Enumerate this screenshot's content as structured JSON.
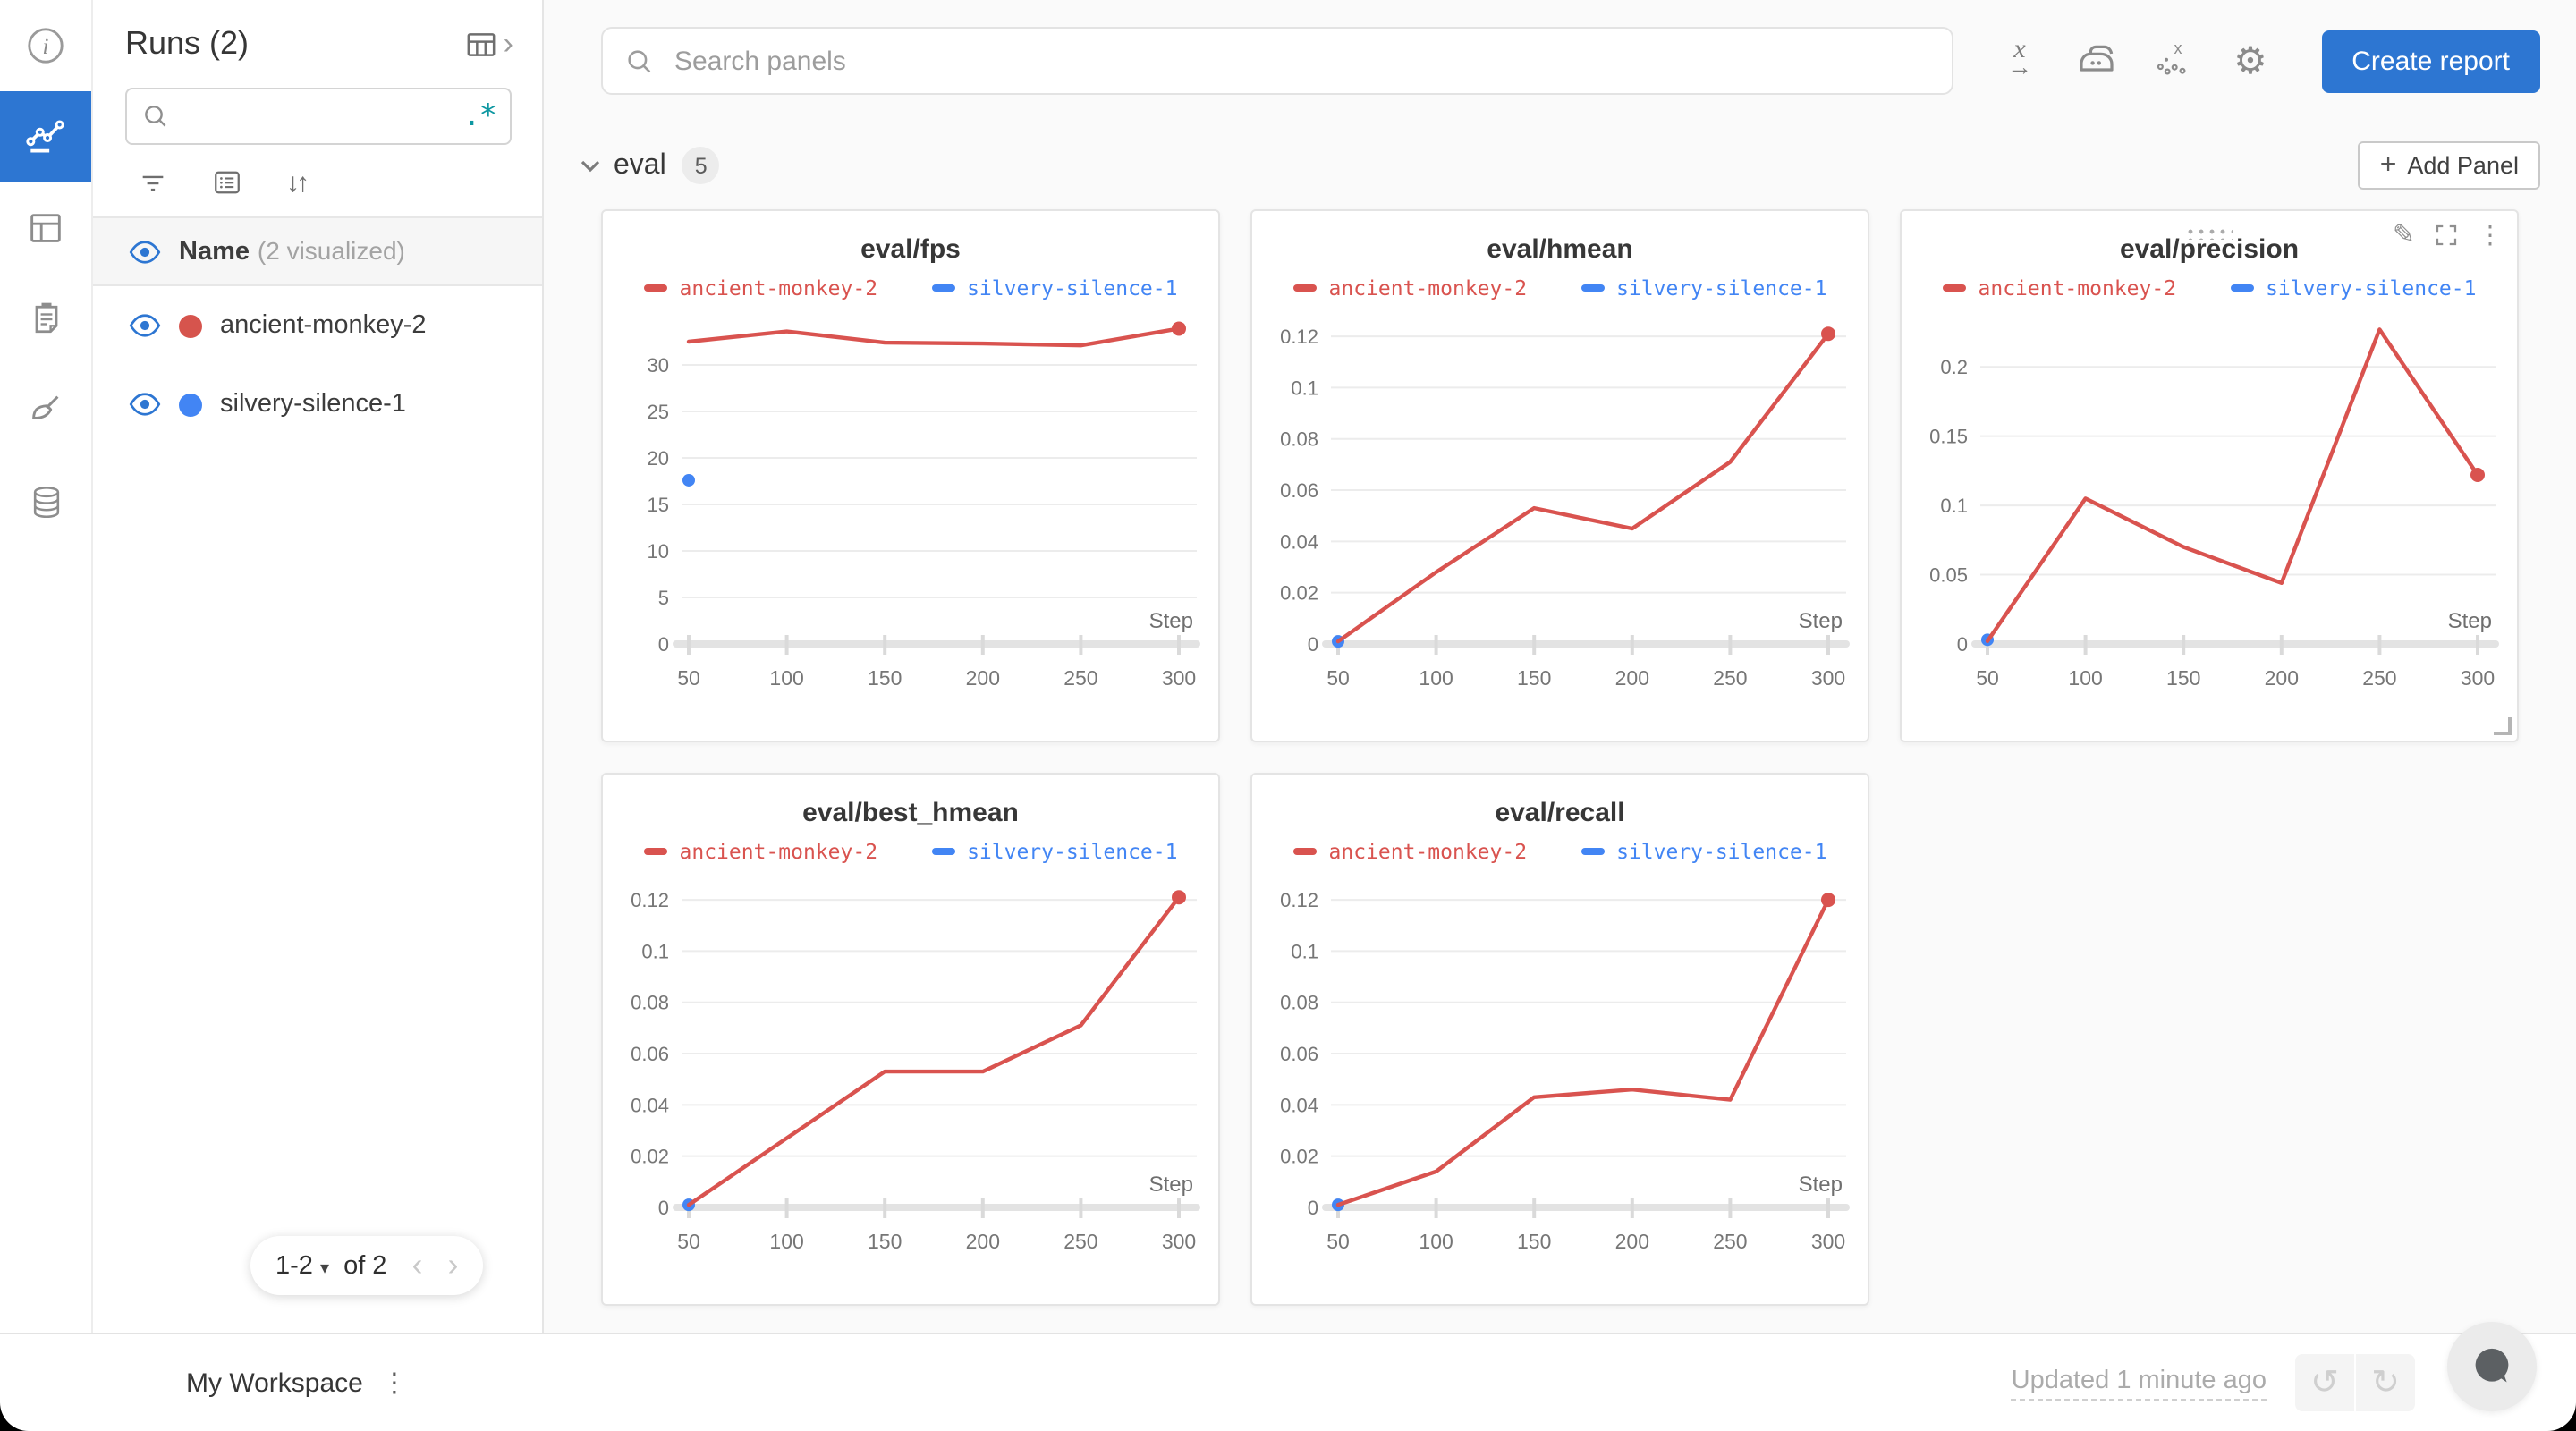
{
  "runs_sidebar": {
    "title": "Runs (2)",
    "search_placeholder": "",
    "name_header": {
      "label": "Name",
      "sub": "(2 visualized)"
    },
    "runs": [
      {
        "name": "ancient-monkey-2",
        "color": "#d6544d"
      },
      {
        "name": "silvery-silence-1",
        "color": "#4285f4"
      }
    ],
    "pagination": {
      "range": "1-2",
      "of_label": "of 2"
    }
  },
  "topbar": {
    "search_placeholder": "Search panels",
    "create_report_label": "Create report"
  },
  "section": {
    "name": "eval",
    "count": "5",
    "add_panel_label": "Add Panel",
    "plus": "+"
  },
  "footer": {
    "workspace_title": "My Workspace",
    "updated_label": "Updated 1 minute ago"
  },
  "icons": {
    "regex": ".*",
    "sort": "↓↑",
    "gear": "⚙",
    "pencil": "✎",
    "kebab": "⋮",
    "footer_kebab": "⋮",
    "undo": "↺",
    "redo": "↻",
    "prev": "‹",
    "next": "›",
    "caret_down": "▾",
    "header_chevron": "›",
    "x_axis_letter": "x",
    "x_axis_arrow": "→",
    "outlier_x": "x"
  },
  "colors": {
    "accent_blue": "#2d76d2",
    "run_red": "#d6544d",
    "run_blue": "#4285f4",
    "teal_regex": "#0d97a1"
  },
  "chart_data": [
    {
      "type": "line",
      "title": "eval/fps",
      "xlabel": "Step",
      "x": [
        50,
        100,
        150,
        200,
        250,
        300
      ],
      "xlim": [
        50,
        300
      ],
      "yticks": [
        0,
        5,
        10,
        15,
        20,
        25,
        30
      ],
      "ylim": [
        0,
        35
      ],
      "legend_position": "top",
      "grid": true,
      "series": [
        {
          "name": "ancient-monkey-2",
          "color": "#d9534f",
          "values": [
            32.5,
            33.6,
            32.4,
            32.3,
            32.1,
            33.9
          ]
        },
        {
          "name": "silvery-silence-1",
          "color": "#4285f4",
          "values": [
            17.6,
            null,
            null,
            null,
            null,
            null
          ]
        }
      ]
    },
    {
      "type": "line",
      "title": "eval/hmean",
      "xlabel": "Step",
      "x": [
        50,
        100,
        150,
        200,
        250,
        300
      ],
      "xlim": [
        50,
        300
      ],
      "yticks": [
        0,
        0.02,
        0.04,
        0.06,
        0.08,
        0.1,
        0.12
      ],
      "ylim": [
        0,
        0.127
      ],
      "legend_position": "top",
      "grid": true,
      "series": [
        {
          "name": "ancient-monkey-2",
          "color": "#d9534f",
          "values": [
            0.001,
            0.028,
            0.053,
            0.045,
            0.071,
            0.121
          ]
        },
        {
          "name": "silvery-silence-1",
          "color": "#4285f4",
          "values": [
            0.001,
            null,
            null,
            null,
            null,
            null
          ]
        }
      ]
    },
    {
      "type": "line",
      "title": "eval/precision",
      "xlabel": "Step",
      "x": [
        50,
        100,
        150,
        200,
        250,
        300
      ],
      "xlim": [
        50,
        300
      ],
      "yticks": [
        0,
        0.05,
        0.1,
        0.15,
        0.2
      ],
      "ylim": [
        0,
        0.235
      ],
      "legend_position": "top",
      "grid": true,
      "active_controls": true,
      "series": [
        {
          "name": "ancient-monkey-2",
          "color": "#d9534f",
          "values": [
            0.002,
            0.105,
            0.07,
            0.044,
            0.227,
            0.122
          ]
        },
        {
          "name": "silvery-silence-1",
          "color": "#4285f4",
          "values": [
            0.003,
            null,
            null,
            null,
            null,
            null
          ]
        }
      ]
    },
    {
      "type": "line",
      "title": "eval/best_hmean",
      "xlabel": "Step",
      "x": [
        50,
        100,
        150,
        200,
        250,
        300
      ],
      "xlim": [
        50,
        300
      ],
      "yticks": [
        0,
        0.02,
        0.04,
        0.06,
        0.08,
        0.1,
        0.12
      ],
      "ylim": [
        0,
        0.127
      ],
      "legend_position": "top",
      "grid": true,
      "series": [
        {
          "name": "ancient-monkey-2",
          "color": "#d9534f",
          "values": [
            0.001,
            0.027,
            0.053,
            0.053,
            0.071,
            0.121
          ]
        },
        {
          "name": "silvery-silence-1",
          "color": "#4285f4",
          "values": [
            0.001,
            null,
            null,
            null,
            null,
            null
          ]
        }
      ]
    },
    {
      "type": "line",
      "title": "eval/recall",
      "xlabel": "Step",
      "x": [
        50,
        100,
        150,
        200,
        250,
        300
      ],
      "xlim": [
        50,
        300
      ],
      "yticks": [
        0,
        0.02,
        0.04,
        0.06,
        0.08,
        0.1,
        0.12
      ],
      "ylim": [
        0,
        0.127
      ],
      "legend_position": "top",
      "grid": true,
      "series": [
        {
          "name": "ancient-monkey-2",
          "color": "#d9534f",
          "values": [
            0.001,
            0.014,
            0.043,
            0.046,
            0.042,
            0.12
          ]
        },
        {
          "name": "silvery-silence-1",
          "color": "#4285f4",
          "values": [
            0.001,
            null,
            null,
            null,
            null,
            null
          ]
        }
      ]
    }
  ]
}
